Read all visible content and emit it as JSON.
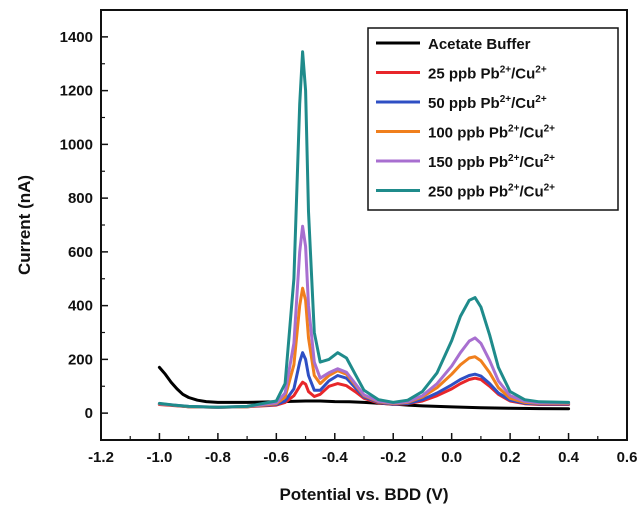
{
  "chart_data": {
    "type": "line",
    "xlabel": "Potential vs. BDD (V)",
    "ylabel": "Current (nA)",
    "xlim": [
      -1.2,
      0.6
    ],
    "ylim": [
      -100,
      1500
    ],
    "xticks": [
      -1.2,
      -1.0,
      -0.8,
      -0.6,
      -0.4,
      -0.2,
      0.0,
      0.2,
      0.4,
      0.6
    ],
    "xtick_labels": [
      "-1.2",
      "-1.0",
      "-0.8",
      "-0.6",
      "-0.4",
      "-0.2",
      "0.0",
      "0.2",
      "0.4",
      "0.6"
    ],
    "yticks": [
      0,
      200,
      400,
      600,
      800,
      1000,
      1200,
      1400
    ],
    "ytick_labels": [
      "0",
      "200",
      "400",
      "600",
      "800",
      "1000",
      "1200",
      "1400"
    ],
    "grid": false,
    "legend_position": "top-right",
    "series": [
      {
        "name": "Acetate Buffer",
        "legend": {
          "main": "Acetate Buffer",
          "sup1": "",
          "mid": "",
          "sup2": ""
        },
        "color": "#000000",
        "x": [
          -1.0,
          -0.98,
          -0.96,
          -0.94,
          -0.92,
          -0.9,
          -0.87,
          -0.84,
          -0.8,
          -0.7,
          -0.6,
          -0.5,
          -0.45,
          -0.4,
          -0.35,
          -0.3,
          -0.25,
          -0.2,
          -0.15,
          -0.1,
          0.0,
          0.1,
          0.2,
          0.3,
          0.4
        ],
        "y": [
          170,
          145,
          115,
          90,
          70,
          58,
          48,
          43,
          40,
          40,
          42,
          45,
          45,
          43,
          42,
          40,
          37,
          34,
          30,
          27,
          23,
          20,
          18,
          17,
          16
        ]
      },
      {
        "name": "25 ppb Pb2+/Cu2+",
        "legend": {
          "main": "25 ppb Pb",
          "sup1": "2+",
          "mid": "/Cu",
          "sup2": "2+"
        },
        "color": "#e8262a",
        "x": [
          -1.0,
          -0.95,
          -0.9,
          -0.8,
          -0.7,
          -0.6,
          -0.57,
          -0.54,
          -0.52,
          -0.51,
          -0.5,
          -0.49,
          -0.47,
          -0.45,
          -0.42,
          -0.39,
          -0.36,
          -0.33,
          -0.3,
          -0.25,
          -0.2,
          -0.15,
          -0.1,
          -0.05,
          0.0,
          0.03,
          0.06,
          0.08,
          0.1,
          0.13,
          0.16,
          0.2,
          0.25,
          0.3,
          0.4
        ],
        "y": [
          32,
          28,
          24,
          22,
          24,
          30,
          40,
          65,
          100,
          115,
          108,
          80,
          62,
          70,
          100,
          110,
          102,
          80,
          55,
          38,
          32,
          35,
          45,
          65,
          90,
          110,
          125,
          130,
          125,
          100,
          70,
          45,
          35,
          32,
          32
        ]
      },
      {
        "name": "50 ppb Pb2+/Cu2+",
        "legend": {
          "main": "50 ppb Pb",
          "sup1": "2+",
          "mid": "/Cu",
          "sup2": "2+"
        },
        "color": "#2e4fc4",
        "x": [
          -1.0,
          -0.95,
          -0.9,
          -0.8,
          -0.7,
          -0.6,
          -0.57,
          -0.54,
          -0.52,
          -0.51,
          -0.5,
          -0.49,
          -0.47,
          -0.45,
          -0.42,
          -0.39,
          -0.36,
          -0.33,
          -0.3,
          -0.25,
          -0.2,
          -0.15,
          -0.1,
          -0.05,
          0.0,
          0.03,
          0.06,
          0.08,
          0.1,
          0.13,
          0.16,
          0.2,
          0.25,
          0.3,
          0.4
        ],
        "y": [
          34,
          29,
          24,
          22,
          24,
          32,
          45,
          90,
          190,
          225,
          200,
          140,
          85,
          85,
          120,
          140,
          130,
          95,
          60,
          40,
          33,
          36,
          50,
          75,
          105,
          125,
          140,
          145,
          138,
          110,
          75,
          48,
          37,
          34,
          34
        ]
      },
      {
        "name": "100 ppb Pb2+/Cu2+",
        "legend": {
          "main": "100 ppb Pb",
          "sup1": "2+",
          "mid": "/Cu",
          "sup2": "2+"
        },
        "color": "#f07f1d",
        "x": [
          -1.0,
          -0.95,
          -0.9,
          -0.8,
          -0.7,
          -0.6,
          -0.57,
          -0.54,
          -0.52,
          -0.51,
          -0.5,
          -0.49,
          -0.47,
          -0.45,
          -0.42,
          -0.39,
          -0.36,
          -0.33,
          -0.3,
          -0.25,
          -0.2,
          -0.15,
          -0.1,
          -0.05,
          0.0,
          0.03,
          0.06,
          0.08,
          0.1,
          0.13,
          0.16,
          0.2,
          0.25,
          0.3,
          0.4
        ],
        "y": [
          34,
          29,
          24,
          22,
          24,
          35,
          60,
          180,
          400,
          465,
          420,
          280,
          140,
          110,
          140,
          158,
          145,
          105,
          65,
          42,
          35,
          40,
          60,
          95,
          145,
          180,
          205,
          210,
          195,
          150,
          95,
          55,
          40,
          36,
          36
        ]
      },
      {
        "name": "150 ppb Pb2+/Cu2+",
        "legend": {
          "main": "150 ppb Pb",
          "sup1": "2+",
          "mid": "/Cu",
          "sup2": "2+"
        },
        "color": "#a86fd0",
        "x": [
          -1.0,
          -0.95,
          -0.9,
          -0.8,
          -0.7,
          -0.6,
          -0.57,
          -0.54,
          -0.52,
          -0.51,
          -0.5,
          -0.49,
          -0.47,
          -0.45,
          -0.42,
          -0.39,
          -0.36,
          -0.33,
          -0.3,
          -0.25,
          -0.2,
          -0.15,
          -0.1,
          -0.05,
          0.0,
          0.03,
          0.06,
          0.08,
          0.1,
          0.13,
          0.16,
          0.2,
          0.25,
          0.3,
          0.4
        ],
        "y": [
          35,
          30,
          25,
          22,
          25,
          38,
          75,
          260,
          600,
          695,
          620,
          400,
          190,
          130,
          150,
          165,
          152,
          110,
          68,
          44,
          37,
          42,
          65,
          110,
          175,
          225,
          268,
          280,
          260,
          195,
          120,
          65,
          44,
          38,
          38
        ]
      },
      {
        "name": "250 ppb Pb2+/Cu2+",
        "legend": {
          "main": "250 ppb Pb",
          "sup1": "2+",
          "mid": "/Cu",
          "sup2": "2+"
        },
        "color": "#1f8b8b",
        "x": [
          -1.0,
          -0.95,
          -0.9,
          -0.8,
          -0.7,
          -0.6,
          -0.57,
          -0.54,
          -0.52,
          -0.51,
          -0.5,
          -0.49,
          -0.47,
          -0.45,
          -0.42,
          -0.39,
          -0.36,
          -0.33,
          -0.3,
          -0.25,
          -0.2,
          -0.15,
          -0.1,
          -0.05,
          0.0,
          0.03,
          0.06,
          0.08,
          0.1,
          0.13,
          0.16,
          0.2,
          0.25,
          0.3,
          0.4
        ],
        "y": [
          36,
          30,
          25,
          22,
          25,
          45,
          110,
          500,
          1150,
          1345,
          1200,
          750,
          300,
          190,
          200,
          225,
          205,
          145,
          85,
          50,
          40,
          48,
          80,
          150,
          270,
          360,
          420,
          430,
          395,
          290,
          170,
          80,
          50,
          42,
          40
        ]
      }
    ]
  }
}
